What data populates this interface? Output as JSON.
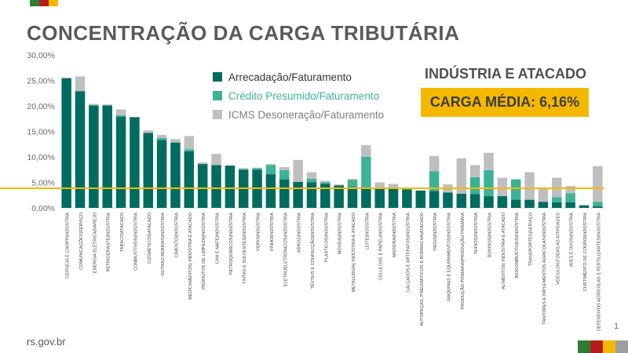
{
  "title": "CONCENTRAÇÃO DA CARGA TRIBUTÁRIA",
  "brand": "rs.gov.br",
  "page_number": "1",
  "sector_label": "INDÚSTRIA E ATACADO",
  "badge_text": "CARGA MÉDIA: 6,16%",
  "colors": {
    "arrecadacao": "#006b5f",
    "credito": "#3db396",
    "icms": "#bfbfbf",
    "media_line": "#f5b800",
    "title": "#5a5a5a",
    "brand_strip": [
      "#2e7d32",
      "#b71c1c",
      "#f5b800",
      "#9e9e9e"
    ]
  },
  "legend": [
    {
      "label": "Arrecadação/Faturamento",
      "color": "#006b5f",
      "text_color": "#333333"
    },
    {
      "label": "Crédito Presumido/Faturamento",
      "color": "#3db396",
      "text_color": "#3db396"
    },
    {
      "label": "ICMS Desoneração/Faturamento",
      "color": "#bfbfbf",
      "text_color": "#7f7f7f"
    }
  ],
  "chart_data": {
    "type": "bar",
    "stacked": true,
    "ylim": [
      0,
      30
    ],
    "yticks": [
      "0,00%",
      "5,00%",
      "10,00%",
      "15,00%",
      "20,00%",
      "25,00%",
      "30,00%"
    ],
    "average_line": 3.85,
    "categories": [
      "CERVEJA E CHOPP|INDÚSTRIA",
      "COMUNICAÇÕES|SERVIÇO",
      "ENERGIA ELÉTRICA|VAREJO",
      "REFRIGERANTE|INDÚSTRIA",
      "TABACO|ATACADO",
      "COMBUSTÍVEIS|INDÚSTRIA",
      "COSMÉTICOS|ATACADO",
      "OUTRAS BEBIDAS|INDÚSTRIA",
      "CIMENTO|INDÚSTRIA",
      "MEDICAMENTOS| INDÚSTRIA E ATACADO",
      "PRODUTOS DE LIMPEZA|INDÚSTRIA",
      "CHÁ E MATE|INDÚSTRIA",
      "PETROQUÍMICOS|INDÚSTRIA",
      "TINTAS E SOLVENTES|INDÚSTRIA",
      "VIDRO|INDÚSTRIA",
      "VINHO|INDÚSTRIA",
      "ELETROELETRÔNICOS|INDÚSTRIA",
      "ARROZ|INDÚSTRIA",
      "TÊXTEIS E CONFECÇÃO|INDÚSTRIA",
      "PLÁSTICOS|INDÚSTRIA",
      "MÓVEIS|INDÚSTRIA",
      "METALURGIA| INDÚSTRIA E ATACADO",
      "LEITE|INDÚSTRIA",
      "CELULOSE E PAPEL|INDÚSTRIA",
      "MADEIRA|INDÚSTRIA",
      "CALÇADOS E ARTEFATOS|INDÚSTRIA",
      "AUTOPEÇAS, PNEUMÁTICOS E BORRACHA|ATACADO",
      "TRIGO|INDÚSTRIA",
      "MÁQUINAS E EQUIPAMENTOS|INDÚSTRIA",
      "PRODUÇÃO PRIMÁRIA|PRODUÇÃO PRIMÁRIA",
      "SUÍNOS|INDÚSTRIA",
      "BOVINOS|INDÚSTRIA",
      "ALIMENTOS| INDÚSTRIA E ATACADO",
      "BIOCOMBUSTÍVEIS|INDÚSTRIA",
      "TRANSPORTES|SERVIÇO",
      "TRATORES E IMPLEMENTOS AGRÍCOLAS|INDÚSTRIA",
      "VEÍCULOS|TODAS AS ATIVIDADES",
      "AVES E OVOS|INDÚSTRIA",
      "CURTIMENTO DE COURO|INDÚSTRIA",
      "DEFENSIVOS AGRÍCOLAS E FERTILIZANTES|INDÚSTRIA"
    ],
    "series": [
      {
        "name": "Arrecadação/Faturamento",
        "values": [
          25.4,
          22.9,
          20.1,
          20.1,
          17.9,
          17.8,
          14.7,
          13.3,
          12.8,
          11.1,
          8.6,
          8.4,
          8.3,
          7.5,
          7.5,
          6.6,
          5.6,
          5.1,
          5.0,
          4.7,
          4.4,
          4.1,
          3.9,
          3.8,
          3.8,
          3.6,
          3.4,
          3.3,
          3.0,
          2.8,
          2.7,
          2.3,
          2.3,
          1.6,
          1.6,
          1.2,
          1.1,
          1.1,
          0.5,
          0.3
        ]
      },
      {
        "name": "Crédito Presumido/Faturamento",
        "values": [
          0,
          0,
          0,
          0,
          0.3,
          0,
          0,
          0.4,
          0.1,
          0.4,
          0,
          0,
          0,
          0.1,
          0.3,
          1.8,
          1.8,
          0,
          0.7,
          0.3,
          0,
          1.4,
          6.1,
          0,
          0,
          0.1,
          0,
          3.9,
          0,
          0,
          3.3,
          5.1,
          0,
          4.0,
          0,
          0,
          1.0,
          1.8,
          0,
          0.9
        ]
      },
      {
        "name": "ICMS Desoneração/Faturamento",
        "values": [
          0.2,
          2.9,
          0.3,
          0.2,
          1.1,
          0,
          0.5,
          0.6,
          0.6,
          2.6,
          0.3,
          2.2,
          0,
          0.2,
          0.1,
          0.2,
          0.6,
          4.3,
          1.3,
          0.3,
          0.2,
          0.2,
          2.3,
          1.2,
          0.9,
          0.3,
          0,
          3.0,
          1.6,
          6.9,
          2.4,
          3.4,
          3.6,
          0,
          5.4,
          2.6,
          3.8,
          1.4,
          0,
          7.0
        ]
      }
    ]
  }
}
